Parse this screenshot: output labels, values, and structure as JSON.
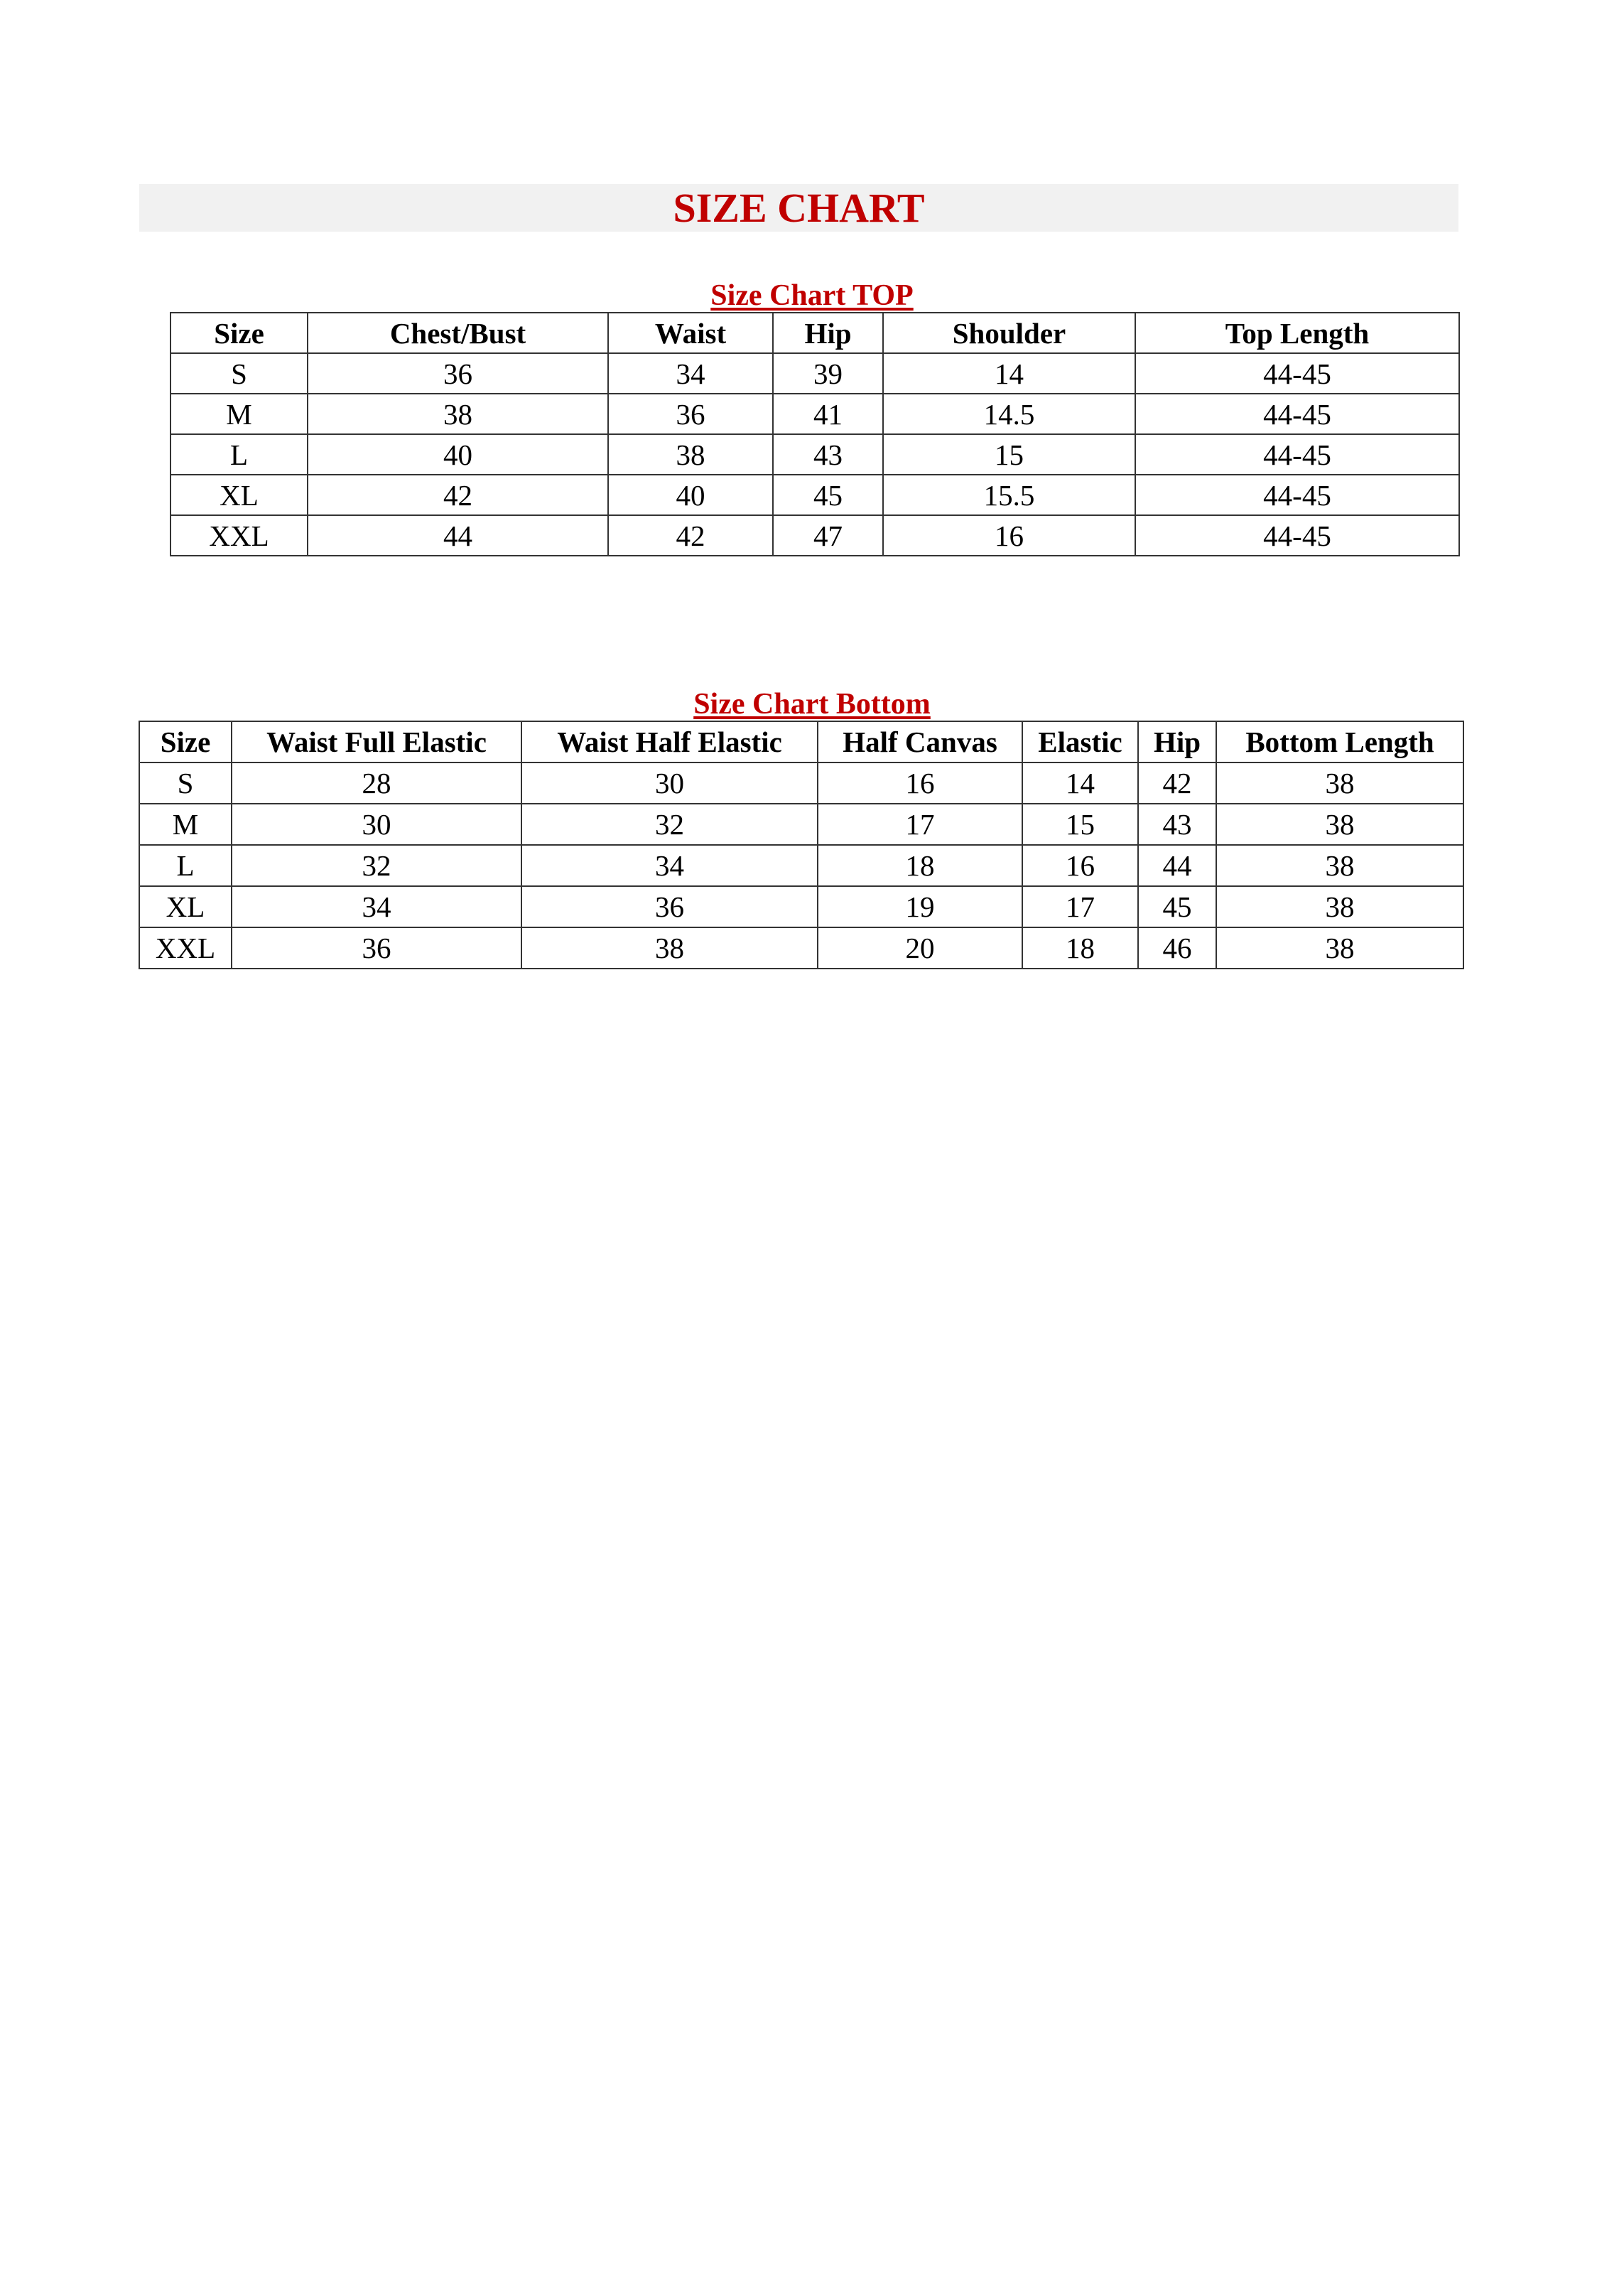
{
  "title": "SIZE CHART",
  "top_chart": {
    "title": "Size Chart TOP",
    "headers": [
      "Size",
      "Chest/Bust",
      "Waist",
      "Hip",
      "Shoulder",
      "Top Length"
    ],
    "rows": [
      [
        "S",
        "36",
        "34",
        "39",
        "14",
        "44-45"
      ],
      [
        "M",
        "38",
        "36",
        "41",
        "14.5",
        "44-45"
      ],
      [
        "L",
        "40",
        "38",
        "43",
        "15",
        "44-45"
      ],
      [
        "XL",
        "42",
        "40",
        "45",
        "15.5",
        "44-45"
      ],
      [
        "XXL",
        "44",
        "42",
        "47",
        "16",
        "44-45"
      ]
    ]
  },
  "bottom_chart": {
    "title": "Size Chart Bottom",
    "headers": [
      "Size",
      "Waist Full Elastic",
      "Waist Half Elastic",
      "Half Canvas",
      "Elastic",
      "Hip",
      "Bottom Length"
    ],
    "rows": [
      [
        "S",
        "28",
        "30",
        "16",
        "14",
        "42",
        "38"
      ],
      [
        "M",
        "30",
        "32",
        "17",
        "15",
        "43",
        "38"
      ],
      [
        "L",
        "32",
        "34",
        "18",
        "16",
        "44",
        "38"
      ],
      [
        "XL",
        "34",
        "36",
        "19",
        "17",
        "45",
        "38"
      ],
      [
        "XXL",
        "36",
        "38",
        "20",
        "18",
        "46",
        "38"
      ]
    ]
  },
  "colors": {
    "accent": "#c00000",
    "banner_bg": "#f1f1f1",
    "border": "#333333"
  }
}
